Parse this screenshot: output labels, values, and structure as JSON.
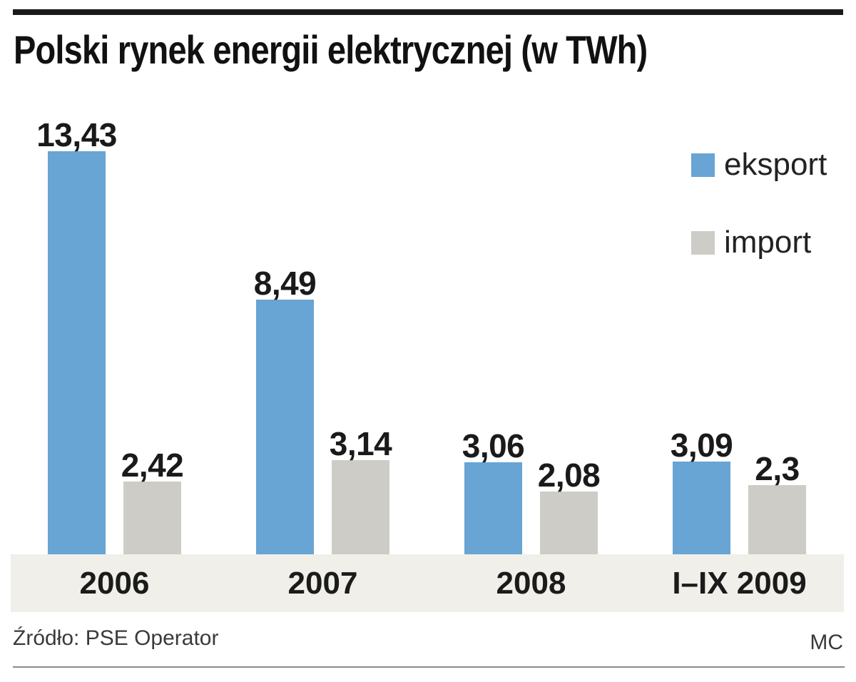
{
  "title": "Polski rynek energii elektrycznej (w TWh)",
  "source": "Źródło: PSE Operator",
  "credit": "MC",
  "colors": {
    "eksport": "#68a4d4",
    "import": "#cdccc6",
    "axis_band": "#f0efe9",
    "top_rule": "#1a1a1a",
    "bottom_rule": "#8c8c8c",
    "text": "#1a1a1a"
  },
  "legend": {
    "items": [
      {
        "label": "eksport",
        "color": "#68a4d4"
      },
      {
        "label": "import",
        "color": "#cdccc6"
      }
    ]
  },
  "chart_data": {
    "type": "bar",
    "title": "Polski rynek energii elektrycznej (w TWh)",
    "unit": "TWh",
    "categories": [
      "2006",
      "2007",
      "2008",
      "I–IX 2009"
    ],
    "series": [
      {
        "name": "eksport",
        "color": "#68a4d4",
        "values": [
          13.43,
          8.49,
          3.06,
          3.09
        ],
        "labels": [
          "13,43",
          "8,49",
          "3,06",
          "3,09"
        ]
      },
      {
        "name": "import",
        "color": "#cdccc6",
        "values": [
          2.42,
          3.14,
          2.08,
          2.3
        ],
        "labels": [
          "2,42",
          "3,14",
          "2,08",
          "2,3"
        ]
      }
    ],
    "value_labels": true,
    "grid": false,
    "legend_position": "top-right",
    "xlabel": "",
    "ylabel": "",
    "ylim": [
      0,
      14
    ]
  }
}
